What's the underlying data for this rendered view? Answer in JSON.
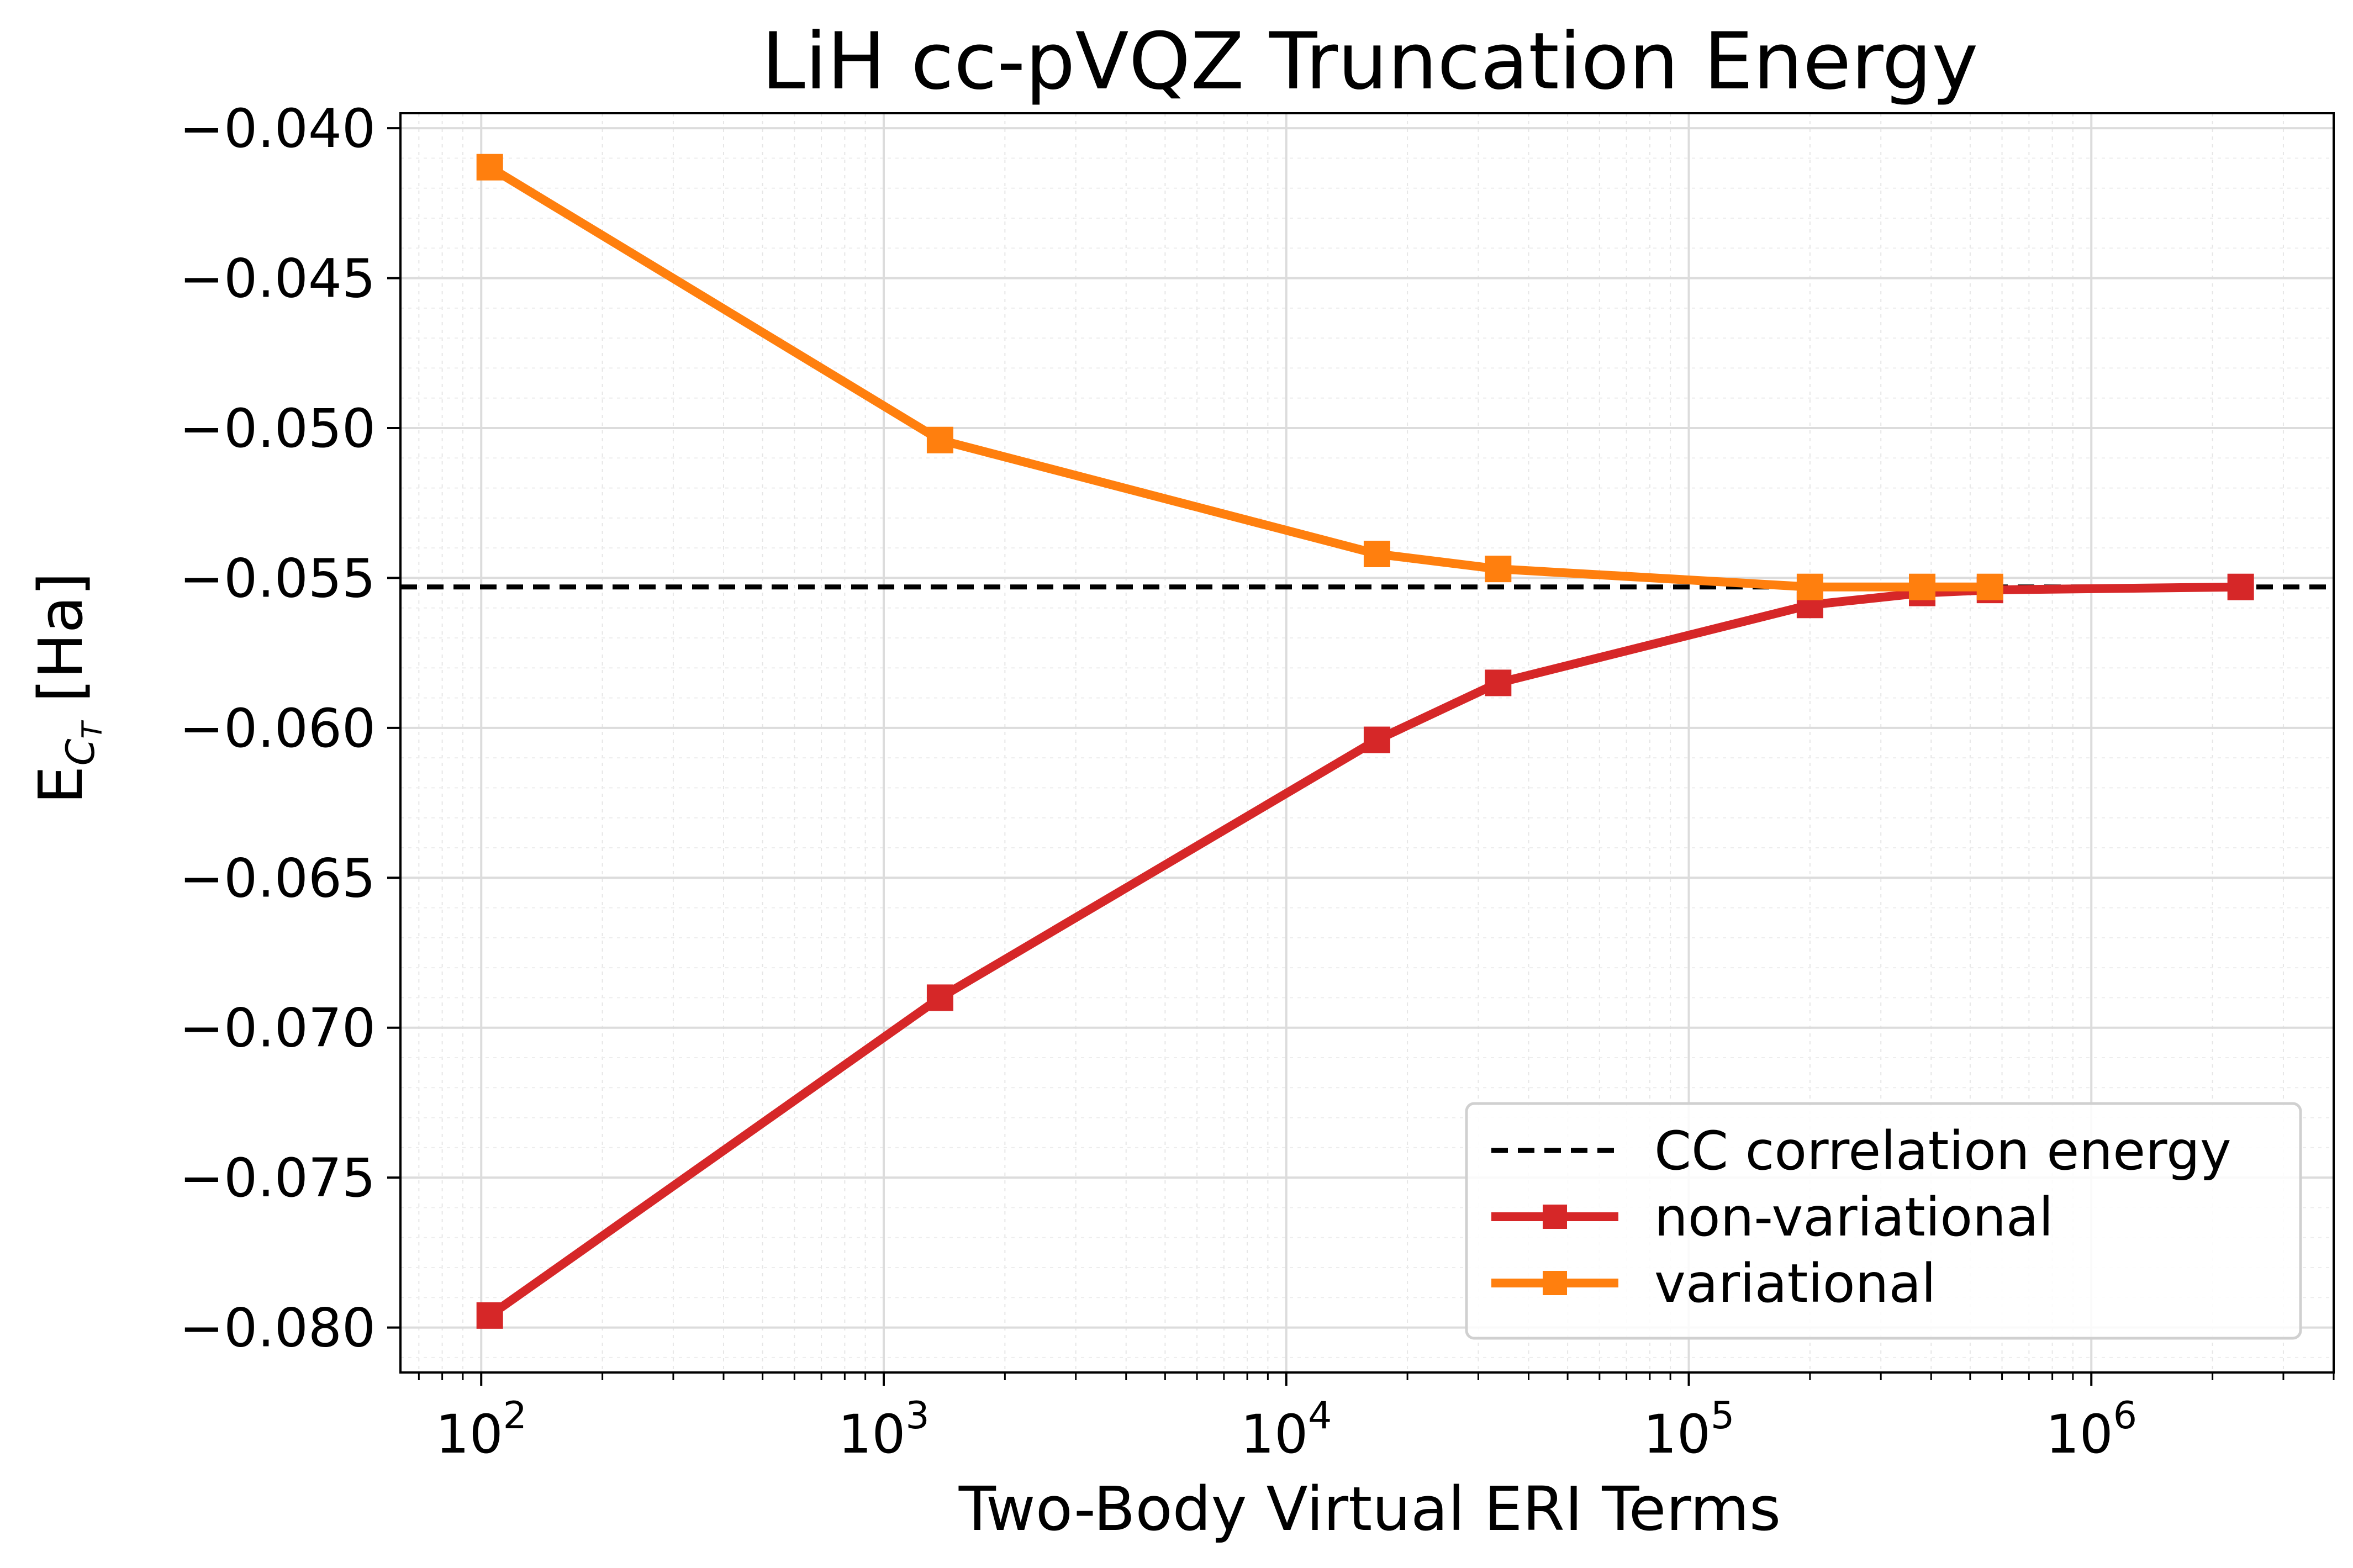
{
  "chart_data": {
    "type": "line",
    "title": "LiH cc-pVQZ Truncation Energy",
    "xlabel": "Two-Body Virtual ERI Terms",
    "ylabel": {
      "main": "E",
      "sub": "C",
      "subsub": "T",
      "unit": " [Ha]"
    },
    "xscale": "log",
    "xlim": [
      63,
      4000000
    ],
    "ylim": [
      -0.0815,
      -0.0395
    ],
    "x_ticks": [
      {
        "value": 100,
        "base": "10",
        "exp": "2"
      },
      {
        "value": 1000,
        "base": "10",
        "exp": "3"
      },
      {
        "value": 10000,
        "base": "10",
        "exp": "4"
      },
      {
        "value": 100000,
        "base": "10",
        "exp": "5"
      },
      {
        "value": 1000000,
        "base": "10",
        "exp": "6"
      }
    ],
    "y_ticks": [
      {
        "value": -0.04,
        "label": "−0.040"
      },
      {
        "value": -0.045,
        "label": "−0.045"
      },
      {
        "value": -0.05,
        "label": "−0.050"
      },
      {
        "value": -0.055,
        "label": "−0.055"
      },
      {
        "value": -0.06,
        "label": "−0.060"
      },
      {
        "value": -0.065,
        "label": "−0.065"
      },
      {
        "value": -0.07,
        "label": "−0.070"
      },
      {
        "value": -0.075,
        "label": "−0.075"
      },
      {
        "value": -0.08,
        "label": "−0.080"
      }
    ],
    "grid": true,
    "reference_line": {
      "name": "CC correlation energy",
      "y": -0.0553,
      "color": "#000000",
      "style": "dashed"
    },
    "series": [
      {
        "name": "non-variational",
        "color": "#d62728",
        "x": [
          105,
          1380,
          16800,
          33600,
          200000,
          380000,
          560000,
          2350000
        ],
        "y": [
          -0.0796,
          -0.069,
          -0.0604,
          -0.0585,
          -0.0559,
          -0.0555,
          -0.0554,
          -0.0553
        ]
      },
      {
        "name": "variational",
        "color": "#ff7f0e",
        "x": [
          105,
          1380,
          16800,
          33600,
          200000,
          380000,
          560000
        ],
        "y": [
          -0.0413,
          -0.0504,
          -0.0542,
          -0.0547,
          -0.0553,
          -0.0553,
          -0.0553
        ]
      }
    ],
    "legend": {
      "position": "lower-right",
      "entries": [
        "CC correlation energy",
        "non-variational",
        "variational"
      ]
    }
  }
}
